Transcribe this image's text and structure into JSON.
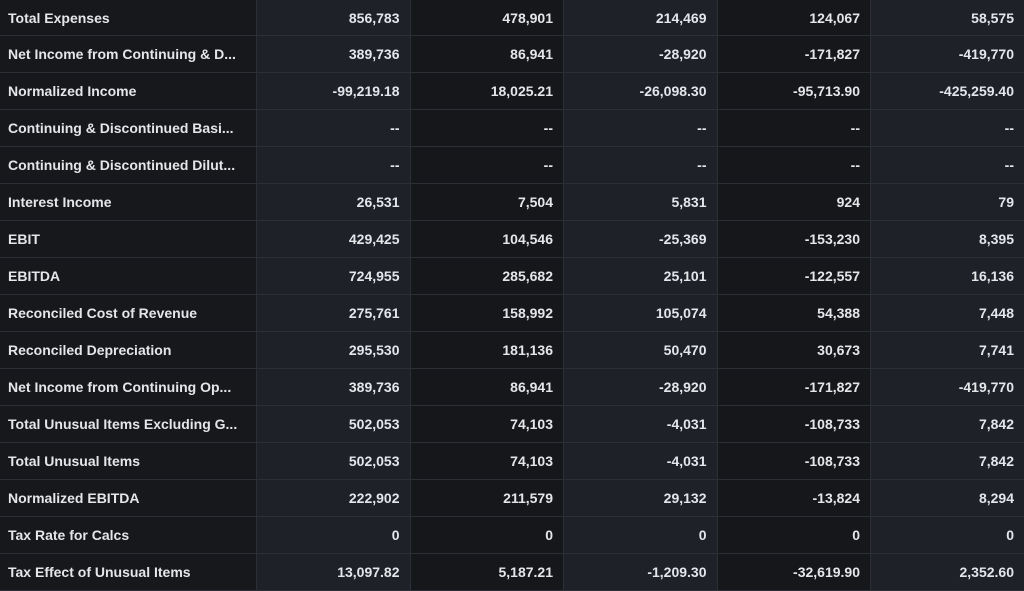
{
  "rows": [
    {
      "label": "Total Expenses",
      "values": [
        "856,783",
        "478,901",
        "214,469",
        "124,067",
        "58,575"
      ]
    },
    {
      "label": "Net Income from Continuing & D...",
      "values": [
        "389,736",
        "86,941",
        "-28,920",
        "-171,827",
        "-419,770"
      ]
    },
    {
      "label": "Normalized Income",
      "values": [
        "-99,219.18",
        "18,025.21",
        "-26,098.30",
        "-95,713.90",
        "-425,259.40"
      ]
    },
    {
      "label": "Continuing & Discontinued Basi...",
      "values": [
        "--",
        "--",
        "--",
        "--",
        "--"
      ]
    },
    {
      "label": "Continuing & Discontinued Dilut...",
      "values": [
        "--",
        "--",
        "--",
        "--",
        "--"
      ]
    },
    {
      "label": "Interest Income",
      "values": [
        "26,531",
        "7,504",
        "5,831",
        "924",
        "79"
      ]
    },
    {
      "label": "EBIT",
      "values": [
        "429,425",
        "104,546",
        "-25,369",
        "-153,230",
        "8,395"
      ]
    },
    {
      "label": "EBITDA",
      "values": [
        "724,955",
        "285,682",
        "25,101",
        "-122,557",
        "16,136"
      ]
    },
    {
      "label": "Reconciled Cost of Revenue",
      "values": [
        "275,761",
        "158,992",
        "105,074",
        "54,388",
        "7,448"
      ]
    },
    {
      "label": "Reconciled Depreciation",
      "values": [
        "295,530",
        "181,136",
        "50,470",
        "30,673",
        "7,741"
      ]
    },
    {
      "label": "Net Income from Continuing Op...",
      "values": [
        "389,736",
        "86,941",
        "-28,920",
        "-171,827",
        "-419,770"
      ]
    },
    {
      "label": "Total Unusual Items Excluding G...",
      "values": [
        "502,053",
        "74,103",
        "-4,031",
        "-108,733",
        "7,842"
      ]
    },
    {
      "label": "Total Unusual Items",
      "values": [
        "502,053",
        "74,103",
        "-4,031",
        "-108,733",
        "7,842"
      ]
    },
    {
      "label": "Normalized EBITDA",
      "values": [
        "222,902",
        "211,579",
        "29,132",
        "-13,824",
        "8,294"
      ]
    },
    {
      "label": "Tax Rate for Calcs",
      "values": [
        "0",
        "0",
        "0",
        "0",
        "0"
      ]
    },
    {
      "label": "Tax Effect of Unusual Items",
      "values": [
        "13,097.82",
        "5,187.21",
        "-1,209.30",
        "-32,619.90",
        "2,352.60"
      ]
    }
  ]
}
